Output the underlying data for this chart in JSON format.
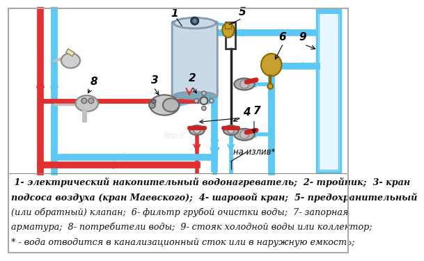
{
  "bg_color": "#f5f5f0",
  "pipe_cold": "#5bc8f5",
  "pipe_hot": "#e03030",
  "pipe_lw": 7,
  "arrow_scale": 18,
  "cold_fill": "#c8e8f8",
  "legend_lines": [
    " 1- электрический накопительный водонагреватель;  2- тройник;  3- кран",
    "подсоса воздуха (кран Маевского);  4- шаровой кран;  5- предохранительный",
    "(или обратный) клапан;  6- фильтр грубой очистки воды;  7- запорная",
    "арматура;  8- потребители воды;  9- стояк холодной воды или коллектор;",
    "* - вода отводится в канализационный сток или в наружную емкость;"
  ],
  "na_izliv": "на излив*",
  "boiler_color": "#c5d8e5",
  "boiler_edge": "#8899aa",
  "gold_color": "#c8a030",
  "gold_edge": "#886600",
  "silver_color": "#b0b0b0",
  "silver_edge": "#666666",
  "red_handle": "#cc2222",
  "stoyak_fill": "#d0ecff",
  "stoyak_edge": "#5bc8f5",
  "border_color": "#888888"
}
